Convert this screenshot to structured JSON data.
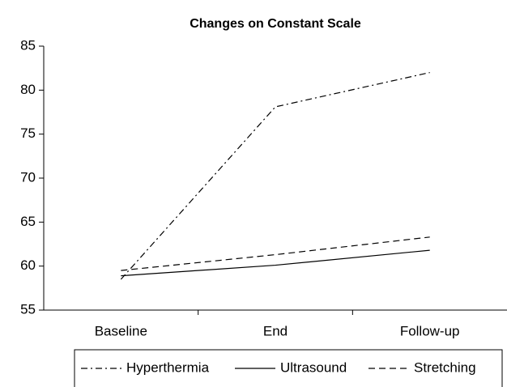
{
  "chart_data": {
    "type": "line",
    "title": "Changes on Constant Scale",
    "categories": [
      "Baseline",
      "End",
      "Follow-up"
    ],
    "series": [
      {
        "name": "Hyperthermia",
        "color": "#000000",
        "style": "dash-dot",
        "values": [
          58.5,
          78.1,
          82
        ]
      },
      {
        "name": "Ultrasound",
        "color": "#000000",
        "style": "solid",
        "values": [
          58.9,
          60.1,
          61.8
        ]
      },
      {
        "name": "Stretching",
        "color": "#000000",
        "style": "dashed",
        "values": [
          59.5,
          61.3,
          63.3
        ]
      }
    ],
    "ylim": [
      55,
      85
    ],
    "yticks": [
      55,
      60,
      65,
      70,
      75,
      80,
      85
    ],
    "grid": false,
    "legend": "bottom"
  }
}
